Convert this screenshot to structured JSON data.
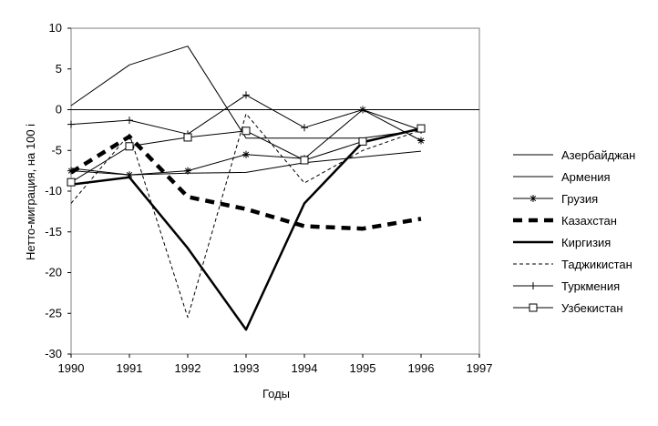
{
  "chart_data": {
    "type": "line",
    "xlabel": "Годы",
    "ylabel": "Нетто-миграция, на 100 i",
    "xlim": [
      1990,
      1997
    ],
    "ylim": [
      -30,
      10
    ],
    "x_ticks": [
      "1990",
      "1991",
      "1992",
      "1993",
      "1994",
      "1995",
      "1996",
      "1997"
    ],
    "y_ticks": [
      "10",
      "5",
      "0",
      "-5",
      "-10",
      "-15",
      "-20",
      "-25",
      "-30"
    ],
    "grid": false,
    "legend_position": "right",
    "series": [
      {
        "name": "Азербайджан",
        "style": "thin-solid",
        "color": "#000000",
        "x": [
          1990,
          1991,
          1992,
          1993,
          1994,
          1995,
          1996
        ],
        "y": [
          -7.2,
          -8.0,
          -7.8,
          -7.7,
          -6.5,
          -5.8,
          -5.1
        ]
      },
      {
        "name": "Армения",
        "style": "thin-solid",
        "color": "#000000",
        "x": [
          1990,
          1991,
          1992,
          1993,
          1994,
          1995,
          1996
        ],
        "y": [
          0.5,
          5.5,
          7.8,
          -3.5,
          -3.5,
          -3.5,
          -2.5
        ]
      },
      {
        "name": "Грузия",
        "style": "asterisk",
        "color": "#000000",
        "x": [
          1990,
          1991,
          1992,
          1993,
          1994,
          1995,
          1996
        ],
        "y": [
          -7.5,
          -8.0,
          -7.5,
          -5.5,
          -6.0,
          0.0,
          -3.8
        ]
      },
      {
        "name": "Казахстан",
        "style": "thick-dashed",
        "color": "#000000",
        "x": [
          1990,
          1991,
          1992,
          1993,
          1994,
          1995,
          1996
        ],
        "y": [
          -7.7,
          -3.3,
          -10.7,
          -12.2,
          -14.3,
          -14.6,
          -13.4
        ]
      },
      {
        "name": "Киргизия",
        "style": "thick-solid",
        "color": "#000000",
        "x": [
          1990,
          1991,
          1992,
          1993,
          1994,
          1995,
          1996
        ],
        "y": [
          -9.2,
          -8.3,
          -17.0,
          -27.0,
          -11.5,
          -4.0,
          -2.3
        ]
      },
      {
        "name": "Таджикистан",
        "style": "thin-dashed",
        "color": "#000000",
        "x": [
          1990,
          1991,
          1992,
          1993,
          1994,
          1995,
          1996
        ],
        "y": [
          -11.5,
          -3.0,
          -25.5,
          -0.5,
          -9.0,
          -5.0,
          -2.5
        ]
      },
      {
        "name": "Туркмения",
        "style": "plus",
        "color": "#000000",
        "x": [
          1990,
          1991,
          1992,
          1993,
          1994,
          1995,
          1996
        ],
        "y": [
          -1.8,
          -1.3,
          -3.0,
          1.8,
          -2.2,
          0.0,
          -2.5
        ]
      },
      {
        "name": "Узбекистан",
        "style": "square",
        "color": "#000000",
        "x": [
          1990,
          1991,
          1992,
          1993,
          1994,
          1995,
          1996
        ],
        "y": [
          -8.9,
          -4.5,
          -3.4,
          -2.6,
          -6.2,
          -3.9,
          -2.3
        ]
      }
    ]
  }
}
